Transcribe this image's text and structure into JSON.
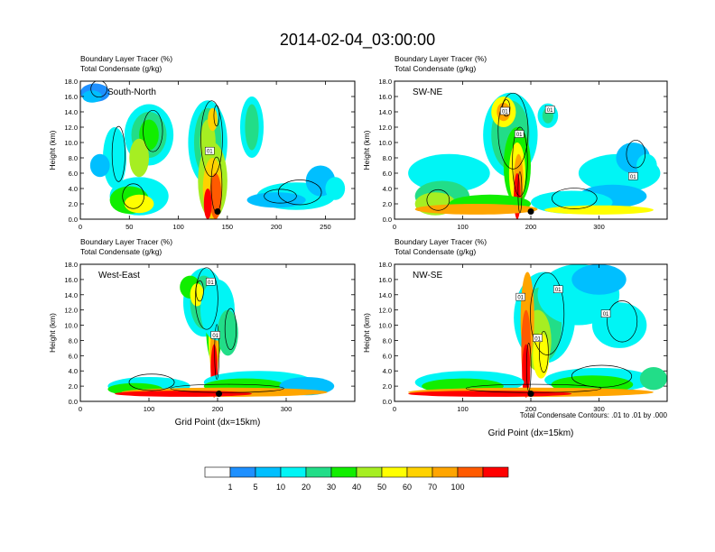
{
  "title": "2014-02-04_03:00:00",
  "field_labels": [
    "Boundary Layer Tracer   (%)",
    "Total Condensate   (g/kg)"
  ],
  "contour_note": "Total Condensate Contours: .01 to .01 by .000",
  "colors": {
    "levels": [
      "#ffffff",
      "#1e90ff",
      "#00bfff",
      "#00f5f5",
      "#22dd88",
      "#11ee00",
      "#a6ee22",
      "#ffff00",
      "#ffd200",
      "#ffa500",
      "#ff5a00",
      "#ff0000"
    ]
  },
  "chart_data": [
    {
      "type": "heatmap",
      "panel_label": "South-North",
      "ylabel": "Height (km)",
      "xlabel": "",
      "ylim": [
        0,
        18
      ],
      "xlim": [
        0,
        280
      ],
      "x_ticks": [
        "0",
        "50",
        "100",
        "150",
        "200",
        "250"
      ],
      "y_ticks": [
        "0.0",
        "2.0",
        "4.0",
        "6.0",
        "8.0",
        "10.0",
        "12.0",
        "14.0",
        "16.0",
        "18.0"
      ],
      "contour_labels": [
        {
          "text": "01",
          "x": 132,
          "y": 8.8
        }
      ],
      "marker": {
        "x": 140,
        "y": 1.0
      }
    },
    {
      "type": "heatmap",
      "panel_label": "SW-NE",
      "ylabel": "Height (km)",
      "xlabel": "",
      "ylim": [
        0,
        18
      ],
      "xlim": [
        0,
        400
      ],
      "x_ticks": [
        "0",
        "100",
        "200",
        "300"
      ],
      "y_ticks": [
        "0.0",
        "2.0",
        "4.0",
        "6.0",
        "8.0",
        "10.0",
        "12.0",
        "14.0",
        "16.0",
        "18.0"
      ],
      "contour_labels": [
        {
          "text": "01",
          "x": 162,
          "y": 14.0
        },
        {
          "text": "01",
          "x": 228,
          "y": 14.2
        },
        {
          "text": "01",
          "x": 183,
          "y": 11.0
        },
        {
          "text": "01",
          "x": 350,
          "y": 5.5
        }
      ],
      "marker": {
        "x": 200,
        "y": 1.0
      }
    },
    {
      "type": "heatmap",
      "panel_label": "West-East",
      "ylabel": "Height (km)",
      "xlabel": "Grid Point (dx=15km)",
      "ylim": [
        0,
        18
      ],
      "xlim": [
        0,
        400
      ],
      "x_ticks": [
        "0",
        "100",
        "200",
        "300"
      ],
      "y_ticks": [
        "0.0",
        "2.0",
        "4.0",
        "6.0",
        "8.0",
        "10.0",
        "12.0",
        "14.0",
        "16.0",
        "18.0"
      ],
      "contour_labels": [
        {
          "text": "01",
          "x": 190,
          "y": 15.6
        },
        {
          "text": "01",
          "x": 197,
          "y": 8.6
        }
      ],
      "marker": {
        "x": 202,
        "y": 1.0
      }
    },
    {
      "type": "heatmap",
      "panel_label": "NW-SE",
      "ylabel": "Height (km)",
      "xlabel": "Grid Point (dx=15km)",
      "ylim": [
        0,
        18
      ],
      "xlim": [
        0,
        400
      ],
      "x_ticks": [
        "0",
        "100",
        "200",
        "300"
      ],
      "y_ticks": [
        "0.0",
        "2.0",
        "4.0",
        "6.0",
        "8.0",
        "10.0",
        "12.0",
        "14.0",
        "16.0",
        "18.0"
      ],
      "contour_labels": [
        {
          "text": "01",
          "x": 185,
          "y": 13.6
        },
        {
          "text": "01",
          "x": 240,
          "y": 14.6
        },
        {
          "text": "01",
          "x": 210,
          "y": 8.2
        },
        {
          "text": "01",
          "x": 310,
          "y": 11.4
        }
      ],
      "marker": {
        "x": 200,
        "y": 1.0
      }
    }
  ],
  "colorbar": {
    "labels": [
      "1",
      "5",
      "10",
      "20",
      "30",
      "40",
      "50",
      "60",
      "70",
      "100"
    ]
  }
}
